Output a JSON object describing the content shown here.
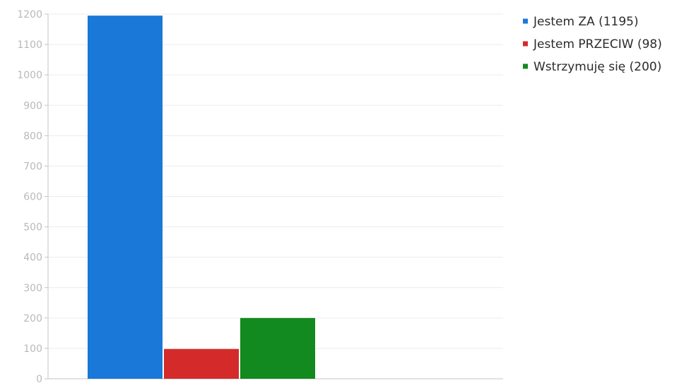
{
  "chart_data": {
    "type": "bar",
    "title": "",
    "xlabel": "",
    "ylabel": "",
    "ylim": [
      0,
      1200
    ],
    "yticks": [
      0,
      100,
      200,
      300,
      400,
      500,
      600,
      700,
      800,
      900,
      1000,
      1100,
      1200
    ],
    "grid": true,
    "legend_position": "top-right",
    "series": [
      {
        "name": "Jestem ZA (1195)",
        "value": 1195,
        "color": "#1a78d8"
      },
      {
        "name": "Jestem PRZECIW (98)",
        "value": 98,
        "color": "#d42a2a"
      },
      {
        "name": "Wstrzymuję się (200)",
        "value": 200,
        "color": "#128a1f"
      }
    ]
  }
}
